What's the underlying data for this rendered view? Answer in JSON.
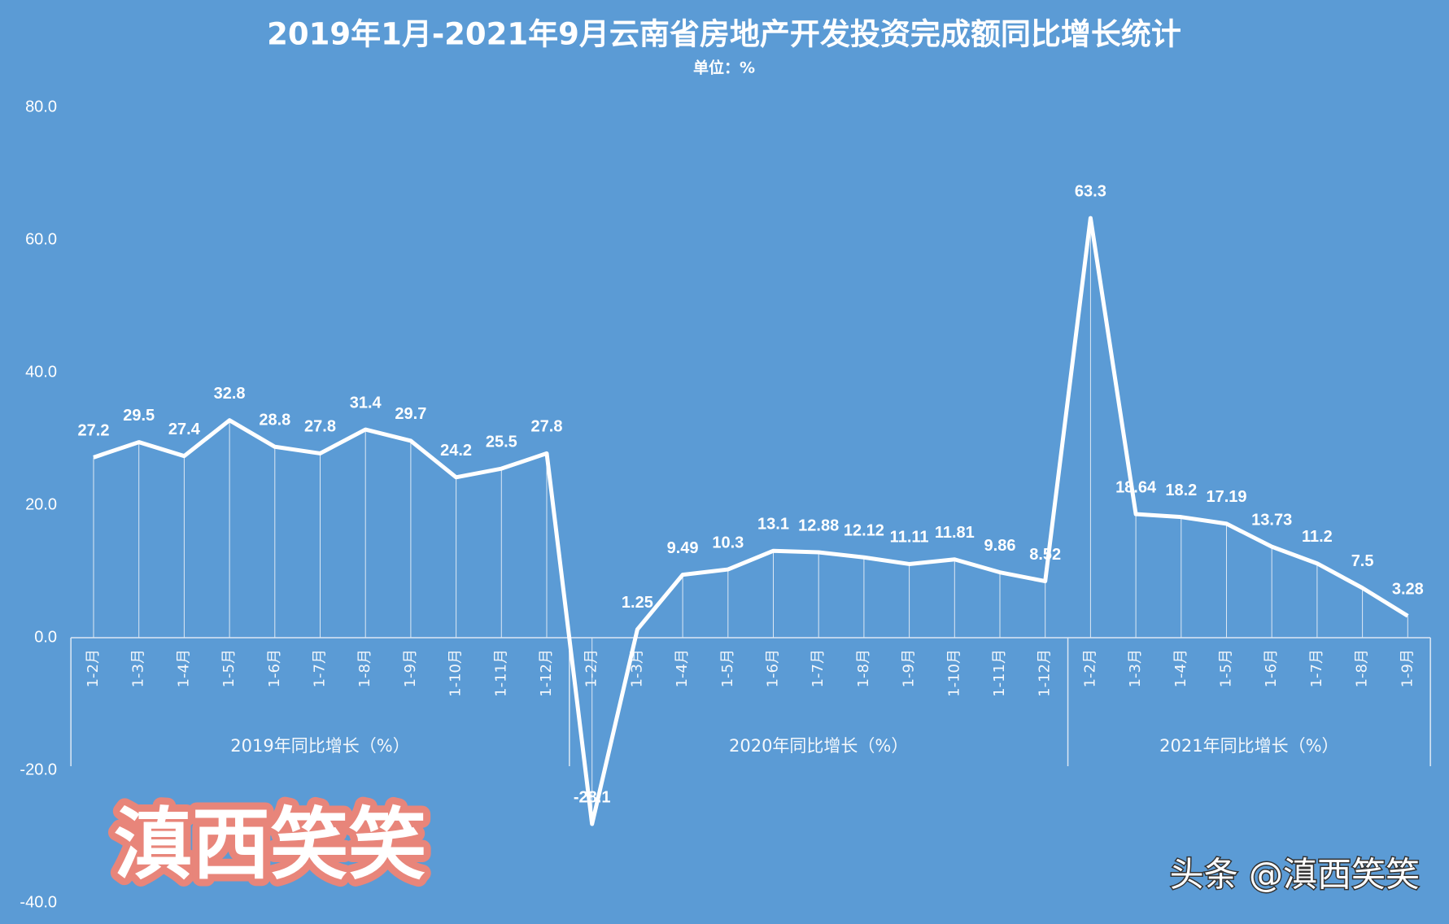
{
  "chart_data": {
    "type": "line",
    "title": "2019年1月-2021年9月云南省房地产开发投资完成额同比增长统计",
    "subtitle": "单位：%",
    "color": "#ffffff",
    "ylim": [
      -40,
      80
    ],
    "yticks": [
      {
        "value": -40,
        "label": "-40.0"
      },
      {
        "value": -20,
        "label": "-20.0"
      },
      {
        "value": 0,
        "label": "0.0"
      },
      {
        "value": 20,
        "label": "20.0"
      },
      {
        "value": 40,
        "label": "40.0"
      },
      {
        "value": 60,
        "label": "60.0"
      },
      {
        "value": 80,
        "label": "80.0"
      }
    ],
    "groups": [
      {
        "name": "2019年同比增长（%）",
        "categories": [
          "1-2月",
          "1-3月",
          "1-4月",
          "1-5月",
          "1-6月",
          "1-7月",
          "1-8月",
          "1-9月",
          "1-10月",
          "1-11月",
          "1-12月"
        ],
        "values": [
          27.2,
          29.5,
          27.4,
          32.8,
          28.8,
          27.8,
          31.4,
          29.7,
          24.2,
          25.5,
          27.8
        ]
      },
      {
        "name": "2020年同比增长（%）",
        "categories": [
          "1-2月",
          "1-3月",
          "1-4月",
          "1-5月",
          "1-6月",
          "1-7月",
          "1-8月",
          "1-9月",
          "1-10月",
          "1-11月",
          "1-12月"
        ],
        "values": [
          -28.1,
          1.25,
          9.49,
          10.3,
          13.1,
          12.88,
          12.12,
          11.11,
          11.81,
          9.86,
          8.52
        ]
      },
      {
        "name": "2021年同比增长（%）",
        "categories": [
          "1-2月",
          "1-3月",
          "1-4月",
          "1-5月",
          "1-6月",
          "1-7月",
          "1-8月",
          "1-9月"
        ],
        "values": [
          63.3,
          18.64,
          18.2,
          17.19,
          13.73,
          11.2,
          7.5,
          3.28
        ]
      }
    ],
    "watermark": "滇西笑笑",
    "source": "头条 @滇西笑笑"
  }
}
